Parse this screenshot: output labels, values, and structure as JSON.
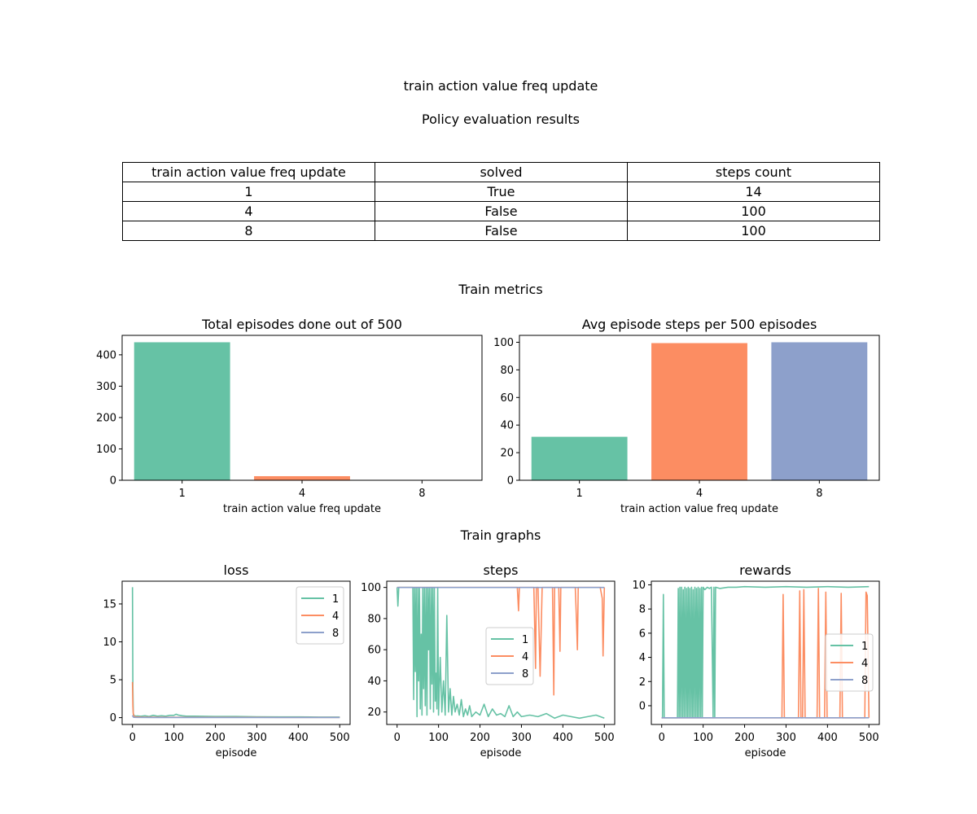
{
  "figure": {
    "suptitle": "train action value freq update",
    "table_title": "Policy evaluation results",
    "metrics_title": "Train metrics",
    "graphs_title": "Train graphs"
  },
  "table": {
    "headers": [
      "train action value freq update",
      "solved",
      "steps count"
    ],
    "rows": [
      [
        "1",
        "True",
        "14"
      ],
      [
        "4",
        "False",
        "100"
      ],
      [
        "8",
        "False",
        "100"
      ]
    ]
  },
  "colors": {
    "1": "#66c2a5",
    "4": "#fc8d62",
    "8": "#8da0cb"
  },
  "chart_data": [
    {
      "type": "bar",
      "title": "Total episodes done out of 500",
      "xlabel": "train action value freq update",
      "ylabel": "",
      "categories": [
        "1",
        "4",
        "8"
      ],
      "values": [
        440,
        13,
        0
      ],
      "ylim": [
        0,
        462
      ],
      "yticks": [
        0,
        100,
        200,
        300,
        400
      ],
      "colors": [
        "#66c2a5",
        "#fc8d62",
        "#8da0cb"
      ]
    },
    {
      "type": "bar",
      "title": "Avg episode steps per 500 episodes",
      "xlabel": "train action value freq update",
      "ylabel": "",
      "categories": [
        "1",
        "4",
        "8"
      ],
      "values": [
        31.5,
        99.4,
        100
      ],
      "ylim": [
        0,
        105
      ],
      "yticks": [
        0,
        20,
        40,
        60,
        80,
        100
      ],
      "colors": [
        "#66c2a5",
        "#fc8d62",
        "#8da0cb"
      ]
    },
    {
      "type": "line",
      "title": "loss",
      "xlabel": "episode",
      "ylabel": "",
      "xlim": [
        -25,
        525
      ],
      "ylim": [
        -0.9,
        18.0
      ],
      "xticks": [
        0,
        100,
        200,
        300,
        400,
        500
      ],
      "yticks": [
        0,
        5,
        10,
        15
      ],
      "legend": "upper right",
      "series": [
        {
          "name": "1",
          "x": [
            0,
            1,
            2,
            3,
            5,
            8,
            12,
            20,
            30,
            40,
            50,
            60,
            70,
            80,
            90,
            100,
            105,
            110,
            120,
            130,
            150,
            200,
            250,
            300,
            350,
            400,
            450,
            500
          ],
          "y": [
            17.2,
            4.0,
            0.6,
            0.3,
            0.25,
            0.2,
            0.22,
            0.18,
            0.25,
            0.15,
            0.3,
            0.2,
            0.25,
            0.2,
            0.3,
            0.3,
            0.45,
            0.35,
            0.25,
            0.2,
            0.2,
            0.15,
            0.15,
            0.12,
            0.1,
            0.1,
            0.08,
            0.08
          ]
        },
        {
          "name": "4",
          "x": [
            0,
            1,
            2,
            3,
            5,
            10,
            20,
            50,
            100,
            150,
            200,
            250,
            300,
            350,
            400,
            450,
            500
          ],
          "y": [
            4.7,
            1.5,
            0.5,
            0.25,
            0.12,
            0.1,
            0.08,
            0.06,
            0.05,
            0.05,
            0.04,
            0.04,
            0.04,
            0.03,
            0.03,
            0.03,
            0.03
          ]
        },
        {
          "name": "8",
          "x": [
            0,
            1,
            2,
            3,
            10,
            50,
            100,
            200,
            300,
            400,
            500
          ],
          "y": [
            0.3,
            0.2,
            0.1,
            0.05,
            0.03,
            0.02,
            0.02,
            0.02,
            0.02,
            0.02,
            0.02
          ]
        }
      ]
    },
    {
      "type": "line",
      "title": "steps",
      "xlabel": "episode",
      "ylabel": "",
      "xlim": [
        -25,
        525
      ],
      "ylim": [
        12.0,
        104.0
      ],
      "xticks": [
        0,
        100,
        200,
        300,
        400,
        500
      ],
      "yticks": [
        20,
        40,
        60,
        80,
        100
      ],
      "legend": "center right",
      "series": [
        {
          "name": "1",
          "x": [
            0,
            2,
            4,
            10,
            20,
            30,
            38,
            40,
            42,
            44,
            46,
            48,
            50,
            52,
            54,
            56,
            58,
            60,
            62,
            64,
            66,
            68,
            70,
            72,
            74,
            76,
            78,
            80,
            82,
            84,
            86,
            88,
            90,
            92,
            94,
            96,
            98,
            100,
            104,
            108,
            112,
            116,
            120,
            124,
            128,
            132,
            136,
            140,
            145,
            150,
            155,
            160,
            165,
            170,
            175,
            180,
            190,
            200,
            210,
            220,
            230,
            240,
            250,
            260,
            270,
            280,
            290,
            300,
            320,
            340,
            360,
            380,
            400,
            420,
            440,
            460,
            480,
            500
          ],
          "y": [
            100,
            88,
            100,
            100,
            100,
            100,
            100,
            28,
            100,
            46,
            100,
            17,
            100,
            40,
            100,
            22,
            70,
            18,
            100,
            35,
            100,
            24,
            100,
            18,
            100,
            60,
            100,
            22,
            100,
            38,
            100,
            20,
            100,
            27,
            45,
            22,
            100,
            18,
            55,
            20,
            40,
            18,
            82,
            20,
            35,
            18,
            30,
            20,
            25,
            18,
            28,
            17,
            22,
            18,
            24,
            17,
            20,
            18,
            25,
            17,
            22,
            18,
            19,
            17,
            24,
            17,
            20,
            17,
            18,
            17,
            19,
            16,
            18,
            17,
            16,
            17,
            18,
            16
          ]
        },
        {
          "name": "4",
          "x": [
            0,
            100,
            200,
            290,
            293,
            295,
            297,
            300,
            330,
            334,
            336,
            340,
            345,
            350,
            375,
            378,
            380,
            382,
            390,
            393,
            395,
            430,
            433,
            435,
            437,
            440,
            490,
            495,
            497,
            500
          ],
          "y": [
            100,
            100,
            100,
            100,
            85,
            100,
            100,
            100,
            100,
            48,
            100,
            100,
            43,
            100,
            100,
            31,
            100,
            100,
            100,
            59,
            100,
            100,
            77,
            60,
            100,
            100,
            100,
            93,
            56,
            100
          ]
        },
        {
          "name": "8",
          "x": [
            0,
            500
          ],
          "y": [
            100,
            100
          ]
        }
      ]
    },
    {
      "type": "line",
      "title": "rewards",
      "xlabel": "episode",
      "ylabel": "",
      "xlim": [
        -25,
        525
      ],
      "ylim": [
        -1.55,
        10.3
      ],
      "xticks": [
        0,
        100,
        200,
        300,
        400,
        500
      ],
      "yticks": [
        0,
        2,
        4,
        6,
        8,
        10
      ],
      "legend": "center right",
      "series": [
        {
          "name": "1",
          "x": [
            0,
            2,
            4,
            6,
            8,
            10,
            20,
            30,
            38,
            40,
            42,
            44,
            46,
            48,
            50,
            52,
            54,
            56,
            58,
            60,
            62,
            64,
            66,
            68,
            70,
            72,
            74,
            76,
            78,
            80,
            82,
            84,
            86,
            88,
            90,
            92,
            94,
            96,
            98,
            100,
            104,
            110,
            115,
            120,
            124,
            126,
            128,
            130,
            140,
            160,
            180,
            200,
            250,
            300,
            350,
            400,
            450,
            500
          ],
          "y": [
            -1.0,
            -1.0,
            9.2,
            -1.0,
            -1.0,
            -1.0,
            -1.0,
            -1.0,
            -1.0,
            9.7,
            -1.0,
            9.8,
            -1.0,
            9.8,
            -1.0,
            9.6,
            -1.0,
            9.8,
            -1.0,
            9.7,
            -1.0,
            9.8,
            -1.0,
            9.7,
            -1.0,
            9.8,
            -1.0,
            9.6,
            -1.0,
            9.8,
            -1.0,
            9.7,
            -1.0,
            9.8,
            -1.0,
            9.7,
            -1.0,
            9.8,
            -1.0,
            9.8,
            9.6,
            9.8,
            9.7,
            9.8,
            -1.0,
            9.8,
            -1.0,
            9.8,
            9.7,
            9.8,
            9.8,
            9.85,
            9.8,
            9.85,
            9.8,
            9.85,
            9.8,
            9.85
          ]
        },
        {
          "name": "4",
          "x": [
            0,
            100,
            200,
            290,
            293,
            296,
            330,
            333,
            336,
            340,
            343,
            346,
            375,
            378,
            381,
            393,
            396,
            399,
            430,
            433,
            436,
            490,
            493,
            496,
            500
          ],
          "y": [
            -1.0,
            -1.0,
            -1.0,
            -1.0,
            9.2,
            -1.0,
            -1.0,
            9.5,
            -1.0,
            -1.0,
            9.6,
            -1.0,
            -1.0,
            9.7,
            -1.0,
            -1.0,
            9.4,
            -1.0,
            -1.0,
            9.3,
            -1.0,
            -1.0,
            9.4,
            9.1,
            -1.0
          ]
        },
        {
          "name": "8",
          "x": [
            0,
            500
          ],
          "y": [
            -1.0,
            -1.0
          ]
        }
      ]
    }
  ]
}
